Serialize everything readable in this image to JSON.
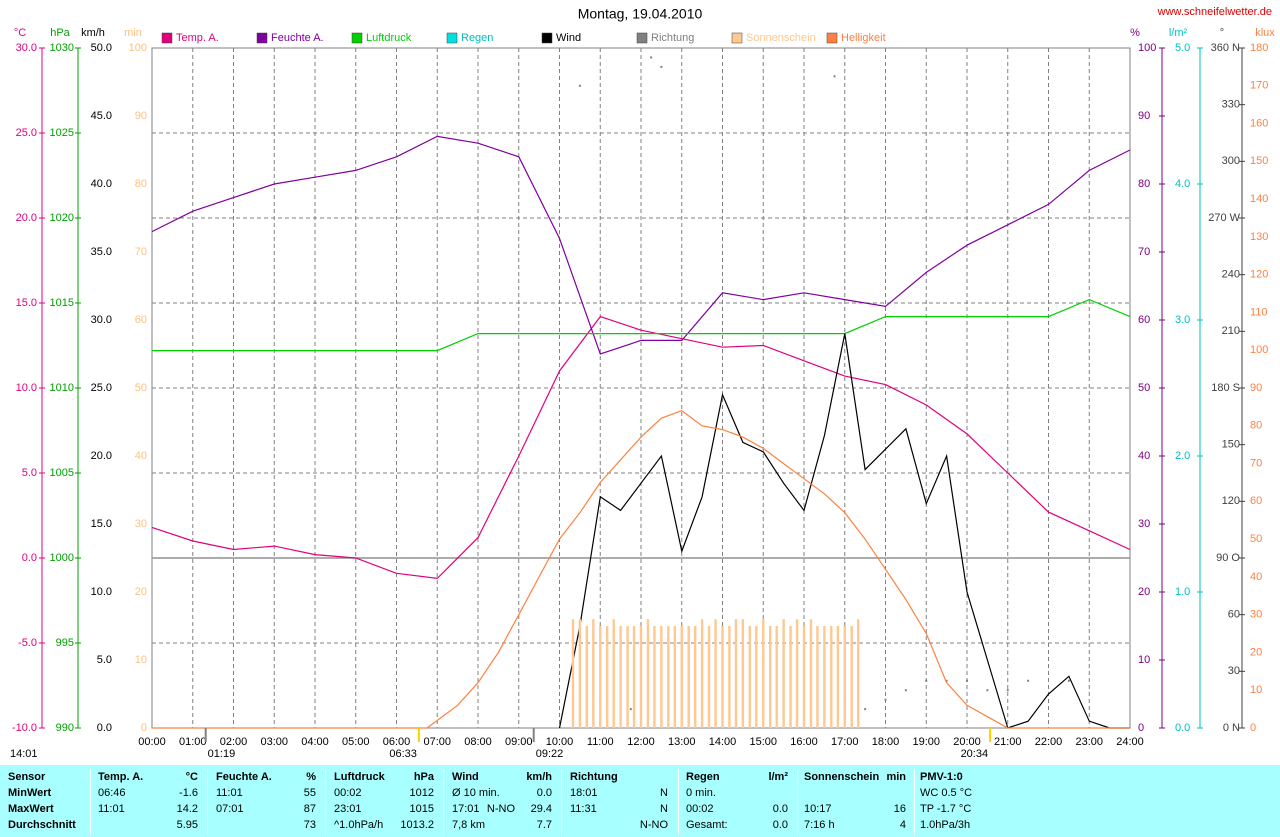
{
  "chart_data": {
    "type": "line",
    "title": "Montag, 19.04.2010",
    "source": "www.schneifelwetter.de",
    "grid": true,
    "xlim": [
      0,
      24
    ],
    "xticks": [
      {
        "value": 0,
        "label": "00:00"
      },
      {
        "value": 1,
        "label": "01:00"
      },
      {
        "value": 2,
        "label": "02:00"
      },
      {
        "value": 3,
        "label": "03:00"
      },
      {
        "value": 4,
        "label": "04:00"
      },
      {
        "value": 5,
        "label": "05:00"
      },
      {
        "value": 6,
        "label": "06:00"
      },
      {
        "value": 7,
        "label": "07:00"
      },
      {
        "value": 8,
        "label": "08:00"
      },
      {
        "value": 9,
        "label": "09:00"
      },
      {
        "value": 10,
        "label": "10:00"
      },
      {
        "value": 11,
        "label": "11:00"
      },
      {
        "value": 12,
        "label": "12:00"
      },
      {
        "value": 13,
        "label": "13:00"
      },
      {
        "value": 14,
        "label": "14:00"
      },
      {
        "value": 15,
        "label": "15:00"
      },
      {
        "value": 16,
        "label": "16:00"
      },
      {
        "value": 17,
        "label": "17:00"
      },
      {
        "value": 18,
        "label": "18:00"
      },
      {
        "value": 19,
        "label": "19:00"
      },
      {
        "value": 20,
        "label": "20:00"
      },
      {
        "value": 21,
        "label": "21:00"
      },
      {
        "value": 22,
        "label": "22:00"
      },
      {
        "value": 23,
        "label": "23:00"
      },
      {
        "value": 24,
        "label": "24:00"
      }
    ],
    "axes": [
      {
        "label": "°C",
        "side": "left",
        "color": "#e0007f",
        "lim": [
          -10,
          30
        ],
        "ticks": [
          {
            "value": -10,
            "label": "-10.0"
          },
          {
            "value": -5,
            "label": "-5.0"
          },
          {
            "value": 0,
            "label": "0.0"
          },
          {
            "value": 5,
            "label": "5.0"
          },
          {
            "value": 10,
            "label": "10.0"
          },
          {
            "value": 15,
            "label": "15.0"
          },
          {
            "value": 20,
            "label": "20.0"
          },
          {
            "value": 25,
            "label": "25.0"
          },
          {
            "value": 30,
            "label": "30.0"
          }
        ]
      },
      {
        "label": "hPa",
        "side": "left",
        "color": "#00a000",
        "lim": [
          990,
          1030
        ],
        "ticks": [
          990,
          995,
          1000,
          1005,
          1010,
          1015,
          1020,
          1025,
          1030
        ]
      },
      {
        "label": "km/h",
        "side": "left",
        "color": "#000000",
        "lim": [
          0,
          50
        ],
        "ticks": [
          {
            "value": 0,
            "label": "0.0"
          },
          {
            "value": 5,
            "label": "5.0"
          },
          {
            "value": 10,
            "label": "10.0"
          },
          {
            "value": 15,
            "label": "15.0"
          },
          {
            "value": 20,
            "label": "20.0"
          },
          {
            "value": 25,
            "label": "25.0"
          },
          {
            "value": 30,
            "label": "30.0"
          },
          {
            "value": 35,
            "label": "35.0"
          },
          {
            "value": 40,
            "label": "40.0"
          },
          {
            "value": 45,
            "label": "45.0"
          },
          {
            "value": 50,
            "label": "50.0"
          }
        ]
      },
      {
        "label": "min",
        "side": "left",
        "color": "#ffc080",
        "lim": [
          0,
          100
        ],
        "ticks": [
          0,
          10,
          20,
          30,
          40,
          50,
          60,
          70,
          80,
          90,
          100
        ]
      },
      {
        "label": "%",
        "side": "right",
        "color": "#800080",
        "lim": [
          0,
          100
        ],
        "ticks": [
          0,
          10,
          20,
          30,
          40,
          50,
          60,
          70,
          80,
          90,
          100
        ]
      },
      {
        "label": "l/m²",
        "side": "right",
        "color": "#00c0c0",
        "lim": [
          0,
          5
        ],
        "ticks": [
          {
            "value": 0,
            "label": "0.0"
          },
          {
            "value": 1,
            "label": "1.0"
          },
          {
            "value": 2,
            "label": "2.0"
          },
          {
            "value": 3,
            "label": "3.0"
          },
          {
            "value": 4,
            "label": "4.0"
          },
          {
            "value": 5,
            "label": "5.0"
          }
        ]
      },
      {
        "label": "°",
        "side": "right",
        "color": "#404040",
        "lim": [
          0,
          360
        ],
        "ticks": [
          {
            "value": 0,
            "label": "0 N"
          },
          30,
          60,
          {
            "value": 90,
            "label": "90 O"
          },
          120,
          150,
          {
            "value": 180,
            "label": "180 S"
          },
          210,
          240,
          {
            "value": 270,
            "label": "270 W"
          },
          300,
          330,
          {
            "value": 360,
            "label": "360 N"
          }
        ]
      },
      {
        "label": "klux",
        "side": "right",
        "color": "#ff8040",
        "lim": [
          0,
          180
        ],
        "ticks": [
          0,
          10,
          20,
          30,
          40,
          50,
          60,
          70,
          80,
          90,
          100,
          110,
          120,
          130,
          140,
          150,
          160,
          170,
          180
        ]
      }
    ],
    "x": [
      0,
      1,
      2,
      3,
      4,
      5,
      6,
      7,
      8,
      9,
      10,
      11,
      12,
      13,
      14,
      15,
      16,
      17,
      18,
      19,
      20,
      21,
      22,
      23,
      24
    ],
    "series": [
      {
        "name": "Temp. A.",
        "color": "#e0007f",
        "axis": 0,
        "style": "line",
        "values": [
          1.8,
          1.0,
          0.5,
          0.7,
          0.2,
          0.0,
          -0.9,
          -1.2,
          1.2,
          6.0,
          11.0,
          14.2,
          13.4,
          12.9,
          12.4,
          12.5,
          11.6,
          10.7,
          10.2,
          9.0,
          7.3,
          5.0,
          2.7,
          1.6,
          0.5
        ]
      },
      {
        "name": "Feuchte A.",
        "color": "#8000a0",
        "axis": 4,
        "style": "line",
        "values": [
          73,
          76,
          78,
          80,
          81,
          82,
          84,
          87,
          86,
          84,
          72,
          55,
          57,
          57,
          64,
          63,
          64,
          63,
          62,
          67,
          71,
          74,
          77,
          82,
          85
        ]
      },
      {
        "name": "Luftdruck",
        "color": "#00d000",
        "axis": 1,
        "style": "line",
        "values": [
          1012.2,
          1012.2,
          1012.2,
          1012.2,
          1012.2,
          1012.2,
          1012.2,
          1012.2,
          1013.2,
          1013.2,
          1013.2,
          1013.2,
          1013.2,
          1013.2,
          1013.2,
          1013.2,
          1013.2,
          1013.2,
          1014.2,
          1014.2,
          1014.2,
          1014.2,
          1014.2,
          1015.2,
          1014.2
        ]
      },
      {
        "name": "Regen",
        "color": "#00e0e0",
        "axis": 5,
        "style": "line",
        "x": [],
        "values": []
      },
      {
        "name": "Wind",
        "color": "#000000",
        "axis": 2,
        "style": "line",
        "x": [
          10,
          10.5,
          11,
          11.5,
          12,
          12.5,
          13,
          13.5,
          14,
          14.5,
          15,
          15.5,
          16,
          16.5,
          17,
          17.5,
          18,
          18.5,
          19,
          19.5,
          20,
          20.5,
          21,
          21.5,
          22,
          22.5,
          23,
          23.5,
          24
        ],
        "values": [
          0,
          7.5,
          17,
          16,
          18,
          20,
          13,
          17,
          24.5,
          21,
          20.3,
          18,
          16,
          21.5,
          29,
          19,
          20.5,
          22,
          16.5,
          20,
          10,
          5,
          0,
          0.5,
          2.5,
          3.8,
          0.5,
          0,
          0
        ]
      },
      {
        "name": "Richtung",
        "color": "#808080",
        "axis": 6,
        "style": "dots",
        "x": [
          10.5,
          11,
          11.75,
          12.25,
          12.5,
          13,
          13.5,
          14,
          14.5,
          15,
          15.5,
          16,
          16.5,
          16.75,
          17,
          17.5,
          18,
          18.5,
          19,
          19.5,
          20,
          20.5,
          21,
          21.5,
          22.5
        ],
        "values": [
          340,
          15,
          10,
          355,
          350,
          30,
          35,
          40,
          35,
          35,
          25,
          35,
          35,
          345,
          15,
          10,
          15,
          20,
          25,
          25,
          25,
          20,
          20,
          25,
          25
        ]
      },
      {
        "name": "Sonnenschein",
        "color": "#ffc890",
        "axis": 3,
        "style": "bars",
        "x": [
          10.33,
          10.5,
          10.67,
          10.83,
          11,
          11.17,
          11.33,
          11.5,
          11.67,
          11.83,
          12,
          12.17,
          12.33,
          12.5,
          12.67,
          12.83,
          13,
          13.17,
          13.33,
          13.5,
          13.67,
          13.83,
          14,
          14.17,
          14.33,
          14.5,
          14.67,
          14.83,
          15,
          15.17,
          15.33,
          15.5,
          15.67,
          15.83,
          16,
          16.17,
          16.33,
          16.5,
          16.67,
          16.83,
          17,
          17.17,
          17.33
        ],
        "values": [
          16,
          16,
          15,
          16,
          15,
          15,
          16,
          15,
          15,
          15,
          15,
          16,
          15,
          15,
          15,
          15,
          15,
          15,
          15,
          16,
          15,
          16,
          15,
          15,
          16,
          16,
          15,
          15,
          16,
          15,
          15,
          16,
          15,
          16,
          15,
          16,
          15,
          15,
          15,
          15,
          15,
          15,
          16
        ]
      },
      {
        "name": "Helligkeit",
        "color": "#ff8040",
        "axis": 7,
        "style": "line",
        "x": [
          0,
          6.75,
          7,
          7.5,
          8,
          8.5,
          9,
          9.5,
          10,
          10.5,
          11,
          11.5,
          12,
          12.5,
          13,
          13.5,
          14,
          14.5,
          15,
          15.5,
          16,
          16.5,
          17,
          17.5,
          18,
          18.5,
          19,
          19.5,
          20,
          20.5,
          21,
          24
        ],
        "values": [
          0,
          0,
          2,
          6,
          12,
          20,
          30,
          40,
          50,
          57,
          65,
          71,
          77,
          82,
          84,
          80,
          79,
          77,
          74,
          70,
          66,
          62,
          57,
          50,
          42,
          34,
          25,
          12,
          6,
          3,
          0,
          0
        ]
      }
    ],
    "annotations": [
      {
        "text": "14:01",
        "color": "#e0c000"
      },
      {
        "x": 1.317,
        "text": "01:19",
        "color": "#808080"
      },
      {
        "x": 6.55,
        "text": "06:33",
        "color": "#ffd000"
      },
      {
        "x": 9.367,
        "text": "09:22",
        "color": "#808080"
      },
      {
        "x": 20.567,
        "text": "20:34",
        "color": "#ffd000"
      }
    ]
  },
  "stats": {
    "header": [
      "Sensor",
      "Temp. A.",
      "°C",
      "Feuchte A.",
      "%",
      "Luftdruck",
      "hPa",
      "Wind",
      null,
      "km/h",
      "Richtung",
      null,
      "Regen",
      "l/m²",
      "Sonnenschein",
      "min",
      "PMV-1:0"
    ],
    "rows": [
      [
        "MinWert",
        "06:46",
        "-1.6",
        "11:01",
        "55",
        "00:02",
        "1012",
        "Ø 10 min.",
        null,
        "0.0",
        "18:01",
        "N",
        "0 min.",
        null,
        null,
        null,
        "WC 0.5 °C"
      ],
      [
        "MaxWert",
        "11:01",
        "14.2",
        "07:01",
        "87",
        "23:01",
        "1015",
        "17:01",
        "N-NO",
        "29.4",
        "11:31",
        "N",
        "00:02",
        "0.0",
        "10:17",
        "16",
        "TP -1.7 °C"
      ],
      [
        "Durchschnitt",
        null,
        "5.95",
        null,
        "73",
        "^1.0hPa/h",
        "1013.2",
        "7,8 km",
        null,
        "7.7",
        null,
        "N-NO",
        "Gesamt:",
        "0.0",
        "7:16 h",
        "4",
        "1.0hPa/3h"
      ]
    ]
  }
}
